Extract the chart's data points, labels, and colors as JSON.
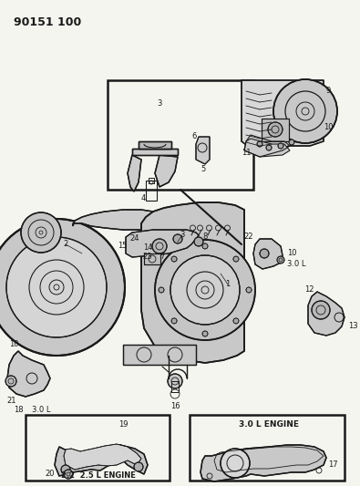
{
  "title": "90151 100",
  "bg": "#f5f5f0",
  "fg": "#2a2a2a",
  "fig_w": 3.95,
  "fig_h": 5.33,
  "dpi": 100
}
